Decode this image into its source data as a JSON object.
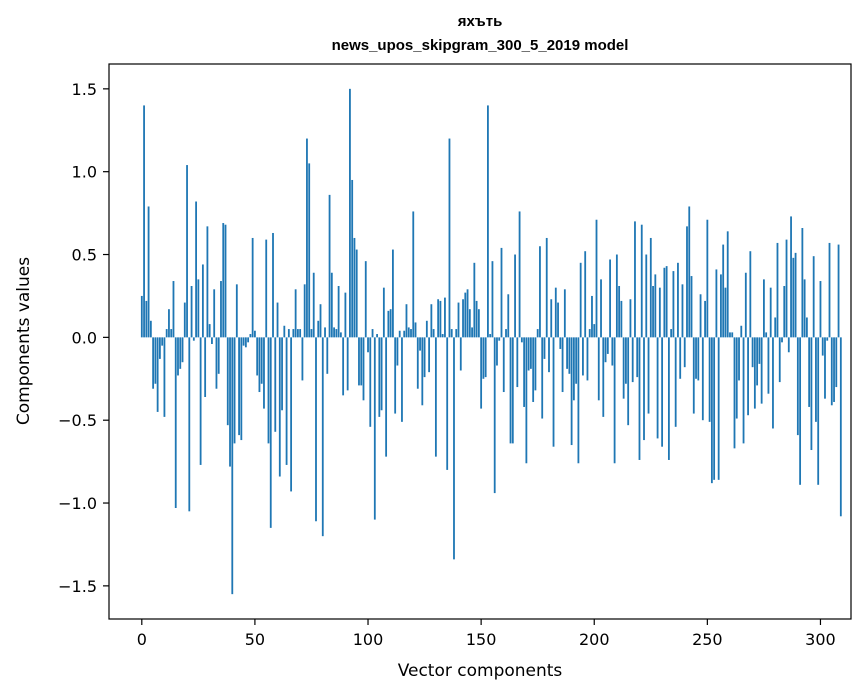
{
  "chart_data": {
    "type": "bar",
    "title": "яхъть",
    "subtitle": "news_upos_skipgram_300_5_2019 model",
    "xlabel": "Vector components",
    "ylabel": "Components values",
    "xlim": [
      -14.5,
      313.5
    ],
    "ylim": [
      -1.7,
      1.65
    ],
    "xticks": [
      0,
      50,
      100,
      150,
      200,
      250,
      300
    ],
    "yticks": [
      -1.5,
      -1.0,
      -0.5,
      0.0,
      0.5,
      1.0,
      1.5
    ],
    "ytick_labels": [
      "−1.5",
      "−1.0",
      "−0.5",
      "0.0",
      "0.5",
      "1.0",
      "1.5"
    ],
    "bar_color": "#1f77b4",
    "grid": false,
    "values": [
      0.25,
      1.4,
      0.22,
      0.79,
      0.1,
      -0.31,
      -0.28,
      -0.45,
      -0.13,
      -0.05,
      -0.48,
      0.05,
      0.17,
      0.05,
      0.34,
      -1.03,
      -0.23,
      -0.19,
      -0.15,
      0.21,
      1.04,
      -1.05,
      0.31,
      -0.02,
      0.82,
      0.35,
      -0.77,
      0.44,
      -0.36,
      0.67,
      0.08,
      -0.04,
      0.29,
      -0.31,
      -0.22,
      0.34,
      0.69,
      0.68,
      -0.53,
      -0.78,
      -1.55,
      -0.64,
      0.32,
      -0.59,
      -0.62,
      -0.05,
      -0.06,
      -0.03,
      0.02,
      0.6,
      0.04,
      -0.23,
      -0.33,
      -0.28,
      -0.43,
      0.59,
      -0.64,
      -1.15,
      0.63,
      -0.57,
      0.21,
      -0.84,
      -0.44,
      0.07,
      -0.77,
      0.05,
      -0.93,
      0.05,
      0.29,
      0.05,
      0.05,
      -0.26,
      0.32,
      1.2,
      1.05,
      0.05,
      0.39,
      -1.11,
      0.1,
      0.2,
      -1.2,
      0.06,
      -0.22,
      0.86,
      0.39,
      0.06,
      0.05,
      0.31,
      0.03,
      -0.35,
      0.27,
      -0.32,
      1.5,
      0.95,
      0.6,
      0.53,
      -0.29,
      -0.29,
      -0.38,
      0.46,
      -0.09,
      -0.54,
      0.05,
      -1.1,
      0.02,
      -0.48,
      -0.44,
      0.3,
      -0.72,
      0.16,
      0.17,
      0.53,
      -0.46,
      -0.17,
      0.04,
      -0.51,
      0.04,
      0.2,
      0.06,
      0.05,
      0.76,
      0.09,
      -0.31,
      -0.08,
      -0.41,
      -0.24,
      0.1,
      -0.21,
      0.2,
      0.05,
      -0.72,
      0.23,
      0.22,
      0.02,
      0.24,
      -0.8,
      1.2,
      0.05,
      -1.34,
      0.05,
      0.21,
      -0.2,
      0.23,
      0.27,
      0.29,
      0.17,
      0.06,
      0.45,
      0.22,
      0.17,
      -0.43,
      -0.25,
      -0.24,
      1.4,
      0.02,
      0.46,
      -0.94,
      -0.17,
      -0.02,
      0.54,
      -0.33,
      0.05,
      0.26,
      -0.64,
      -0.64,
      0.5,
      -0.3,
      0.76,
      -0.03,
      -0.42,
      -0.76,
      -0.2,
      -0.19,
      -0.39,
      -0.32,
      0.05,
      0.55,
      -0.49,
      -0.13,
      0.6,
      -0.21,
      0.23,
      -0.66,
      0.3,
      0.21,
      -0.07,
      -0.33,
      0.29,
      -0.19,
      -0.22,
      -0.65,
      -0.38,
      -0.28,
      -0.76,
      0.45,
      -0.23,
      0.52,
      -0.26,
      0.05,
      0.25,
      0.08,
      0.71,
      -0.38,
      0.35,
      -0.48,
      -0.15,
      -0.1,
      0.47,
      -0.17,
      -0.76,
      0.5,
      0.31,
      0.22,
      -0.37,
      -0.28,
      -0.53,
      0.23,
      -0.27,
      0.7,
      -0.24,
      -0.74,
      0.68,
      -0.62,
      0.5,
      -0.46,
      0.6,
      0.31,
      0.38,
      -0.61,
      0.3,
      -0.66,
      0.42,
      0.43,
      -0.74,
      0.05,
      0.4,
      -0.54,
      0.45,
      -0.25,
      0.32,
      -0.18,
      0.67,
      0.79,
      0.37,
      -0.46,
      -0.25,
      -0.26,
      0.26,
      -0.5,
      0.22,
      0.71,
      -0.51,
      -0.88,
      -0.86,
      0.41,
      -0.86,
      0.38,
      0.56,
      0.3,
      0.64,
      0.03,
      0.03,
      -0.67,
      -0.49,
      -0.26,
      0.07,
      -0.64,
      0.39,
      -0.47,
      0.52,
      -0.18,
      -0.43,
      -0.29,
      -0.16,
      -0.4,
      0.35,
      0.03,
      -0.34,
      0.3,
      -0.55,
      0.12,
      0.57,
      -0.27,
      -0.03,
      0.31,
      0.59,
      -0.09,
      0.73,
      0.48,
      0.51,
      -0.59,
      -0.89,
      0.66,
      0.35,
      0.12,
      -0.42,
      -0.68,
      0.49,
      -0.51,
      -0.89,
      0.34,
      -0.11,
      -0.37,
      -0.02,
      0.57,
      -0.41,
      -0.39,
      -0.3,
      0.56,
      -1.08
    ]
  }
}
